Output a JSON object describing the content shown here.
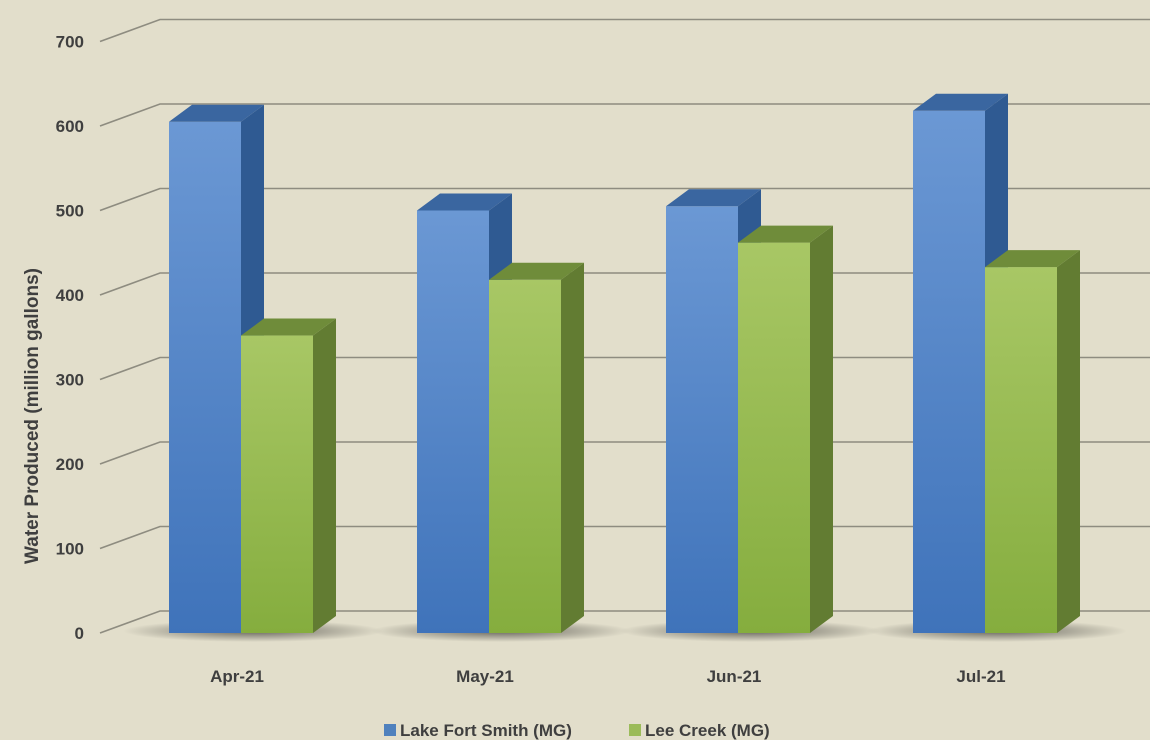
{
  "chart_data": {
    "type": "bar",
    "style": "3d-clustered",
    "categories": [
      "Apr-21",
      "May-21",
      "Jun-21",
      "Jul-21"
    ],
    "series": [
      {
        "name": "Lake Fort Smith (MG)",
        "values": [
          605,
          500,
          505,
          618
        ],
        "color": "#4f81bd"
      },
      {
        "name": "Lee Creek (MG)",
        "values": [
          352,
          418,
          462,
          433
        ],
        "color": "#9bbb59"
      }
    ],
    "ylabel": "Water Produced (million gallons)",
    "xlabel": "",
    "ylim": [
      0,
      700
    ],
    "yticks": [
      0,
      100,
      200,
      300,
      400,
      500,
      600,
      700
    ],
    "grid": true,
    "legend": "bottom",
    "background": "#e2decb"
  }
}
